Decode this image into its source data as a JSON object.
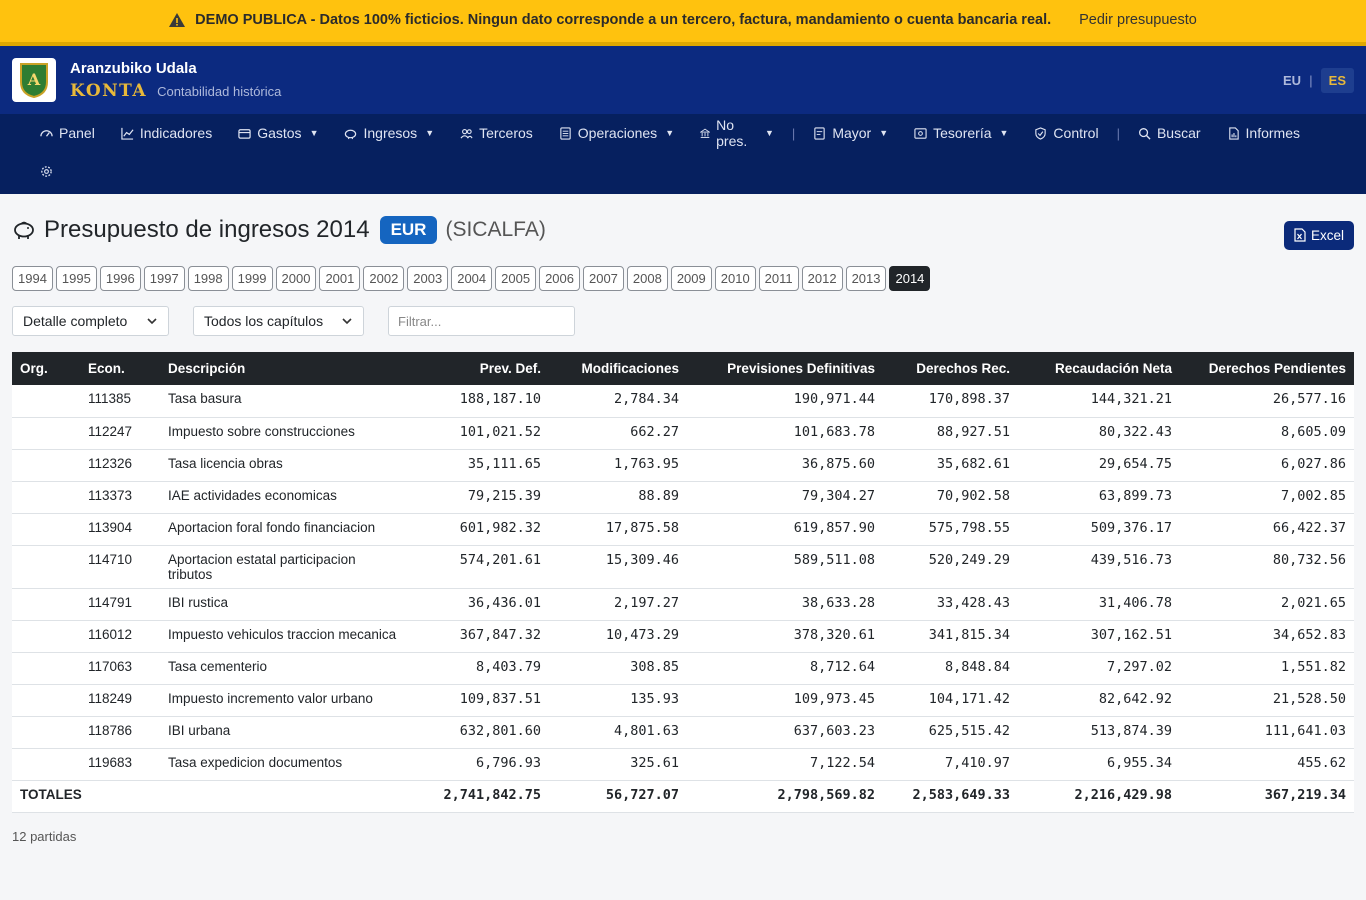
{
  "banner": {
    "message": "DEMO PUBLICA - Datos 100% ficticios. Ningun dato corresponde a un tercero, factura, mandamiento o cuenta bancaria real.",
    "link": "Pedir presupuesto"
  },
  "header": {
    "org": "Aranzubiko Udala",
    "brand": "KONTA",
    "tagline": "Contabilidad histórica",
    "logo_letter": "A",
    "lang_eu": "EU",
    "lang_sep": "|",
    "lang_es": "ES"
  },
  "nav": {
    "panel": "Panel",
    "indicadores": "Indicadores",
    "gastos": "Gastos",
    "ingresos": "Ingresos",
    "terceros": "Terceros",
    "operaciones": "Operaciones",
    "nopres": "No pres.",
    "sep": "|",
    "mayor": "Mayor",
    "tesoreria": "Tesorería",
    "control": "Control",
    "buscar": "Buscar",
    "informes": "Informes"
  },
  "page": {
    "title": "Presupuesto de ingresos 2014",
    "currency": "EUR",
    "system": "(SICALFA)",
    "excel": "Excel"
  },
  "years": [
    "1994",
    "1995",
    "1996",
    "1997",
    "1998",
    "1999",
    "2000",
    "2001",
    "2002",
    "2003",
    "2004",
    "2005",
    "2006",
    "2007",
    "2008",
    "2009",
    "2010",
    "2011",
    "2012",
    "2013",
    "2014"
  ],
  "active_year": "2014",
  "filters": {
    "detail": "Detalle completo",
    "chapters": "Todos los capítulos",
    "placeholder": "Filtrar..."
  },
  "table": {
    "headers": {
      "org": "Org.",
      "econ": "Econ.",
      "desc": "Descripción",
      "prev": "Prev. Def.",
      "mod": "Modificaciones",
      "pdef": "Previsiones Definitivas",
      "drec": "Derechos Rec.",
      "rec": "Recaudación Neta",
      "pend": "Derechos Pendientes"
    },
    "rows": [
      {
        "org": "",
        "econ": "111385",
        "desc": "Tasa basura",
        "prev": "188,187.10",
        "mod": "2,784.34",
        "pdef": "190,971.44",
        "drec": "170,898.37",
        "rec": "144,321.21",
        "pend": "26,577.16"
      },
      {
        "org": "",
        "econ": "112247",
        "desc": "Impuesto sobre construcciones",
        "prev": "101,021.52",
        "mod": "662.27",
        "pdef": "101,683.78",
        "drec": "88,927.51",
        "rec": "80,322.43",
        "pend": "8,605.09"
      },
      {
        "org": "",
        "econ": "112326",
        "desc": "Tasa licencia obras",
        "prev": "35,111.65",
        "mod": "1,763.95",
        "pdef": "36,875.60",
        "drec": "35,682.61",
        "rec": "29,654.75",
        "pend": "6,027.86"
      },
      {
        "org": "",
        "econ": "113373",
        "desc": "IAE actividades economicas",
        "prev": "79,215.39",
        "mod": "88.89",
        "pdef": "79,304.27",
        "drec": "70,902.58",
        "rec": "63,899.73",
        "pend": "7,002.85"
      },
      {
        "org": "",
        "econ": "113904",
        "desc": "Aportacion foral fondo financiacion",
        "prev": "601,982.32",
        "mod": "17,875.58",
        "pdef": "619,857.90",
        "drec": "575,798.55",
        "rec": "509,376.17",
        "pend": "66,422.37"
      },
      {
        "org": "",
        "econ": "114710",
        "desc": "Aportacion estatal participacion tributos",
        "prev": "574,201.61",
        "mod": "15,309.46",
        "pdef": "589,511.08",
        "drec": "520,249.29",
        "rec": "439,516.73",
        "pend": "80,732.56"
      },
      {
        "org": "",
        "econ": "114791",
        "desc": "IBI rustica",
        "prev": "36,436.01",
        "mod": "2,197.27",
        "pdef": "38,633.28",
        "drec": "33,428.43",
        "rec": "31,406.78",
        "pend": "2,021.65"
      },
      {
        "org": "",
        "econ": "116012",
        "desc": "Impuesto vehiculos traccion mecanica",
        "prev": "367,847.32",
        "mod": "10,473.29",
        "pdef": "378,320.61",
        "drec": "341,815.34",
        "rec": "307,162.51",
        "pend": "34,652.83"
      },
      {
        "org": "",
        "econ": "117063",
        "desc": "Tasa cementerio",
        "prev": "8,403.79",
        "mod": "308.85",
        "pdef": "8,712.64",
        "drec": "8,848.84",
        "rec": "7,297.02",
        "pend": "1,551.82"
      },
      {
        "org": "",
        "econ": "118249",
        "desc": "Impuesto incremento valor urbano",
        "prev": "109,837.51",
        "mod": "135.93",
        "pdef": "109,973.45",
        "drec": "104,171.42",
        "rec": "82,642.92",
        "pend": "21,528.50"
      },
      {
        "org": "",
        "econ": "118786",
        "desc": "IBI urbana",
        "prev": "632,801.60",
        "mod": "4,801.63",
        "pdef": "637,603.23",
        "drec": "625,515.42",
        "rec": "513,874.39",
        "pend": "111,641.03"
      },
      {
        "org": "",
        "econ": "119683",
        "desc": "Tasa expedicion documentos",
        "prev": "6,796.93",
        "mod": "325.61",
        "pdef": "7,122.54",
        "drec": "7,410.97",
        "rec": "6,955.34",
        "pend": "455.62"
      }
    ],
    "totals": {
      "label": "TOTALES",
      "prev": "2,741,842.75",
      "mod": "56,727.07",
      "pdef": "2,798,569.82",
      "drec": "2,583,649.33",
      "rec": "2,216,429.98",
      "pend": "367,219.34"
    }
  },
  "footer": {
    "count": "12 partidas"
  },
  "colors": {
    "banner": "#ffc20e",
    "header": "#0c2a80",
    "nav": "#06205f",
    "accent": "#e8b93a",
    "badge": "#1565c0"
  }
}
